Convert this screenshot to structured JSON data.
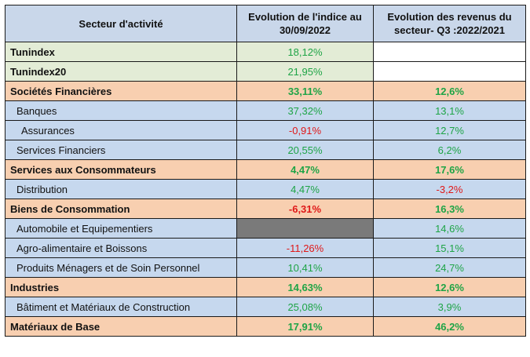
{
  "header": {
    "col1": "Secteur d'activité",
    "col2": "Evolution de l'indice au 30/09/2022",
    "col3": "Evolution des revenus du secteur- Q3 :2022/2021"
  },
  "rows": [
    {
      "label": "Tunindex",
      "index": "18,12%",
      "revenue": ""
    },
    {
      "label": "Tunindex20",
      "index": "21,95%",
      "revenue": ""
    },
    {
      "label": "Sociétés Financières",
      "index": "33,11%",
      "revenue": "12,6%"
    },
    {
      "label": "Banques",
      "index": "37,32%",
      "revenue": "13,1%"
    },
    {
      "label": "Assurances",
      "index": "-0,91%",
      "revenue": "12,7%"
    },
    {
      "label": "Services Financiers",
      "index": "20,55%",
      "revenue": "6,2%"
    },
    {
      "label": "Services aux Consommateurs",
      "index": "4,47%",
      "revenue": "17,6%"
    },
    {
      "label": "Distribution",
      "index": "4,47%",
      "revenue": "-3,2%"
    },
    {
      "label": "Biens de Consommation",
      "index": "-6,31%",
      "revenue": "16,3%"
    },
    {
      "label": "Automobile et Equipementiers",
      "index": "",
      "revenue": "14,6%"
    },
    {
      "label": "Agro-alimentaire et Boissons",
      "index": "-11,26%",
      "revenue": "15,1%"
    },
    {
      "label": "Produits Ménagers et de Soin Personnel",
      "index": "10,41%",
      "revenue": "24,7%"
    },
    {
      "label": "Industries",
      "index": "14,63%",
      "revenue": "12,6%"
    },
    {
      "label": "Bâtiment et Matériaux de Construction",
      "index": "25,08%",
      "revenue": "3,9%"
    },
    {
      "label": "Matériaux de Base",
      "index": "17,91%",
      "revenue": "46,2%"
    }
  ],
  "colors": {
    "header_bg": "#c9d7ea",
    "index_bg": "#e3ecd6",
    "sector_bg": "#f8cfb0",
    "subsector_bg": "#c6d8ee",
    "positive": "#1ea446",
    "negative": "#e01818",
    "missing_cell": "#7a7a7a"
  }
}
